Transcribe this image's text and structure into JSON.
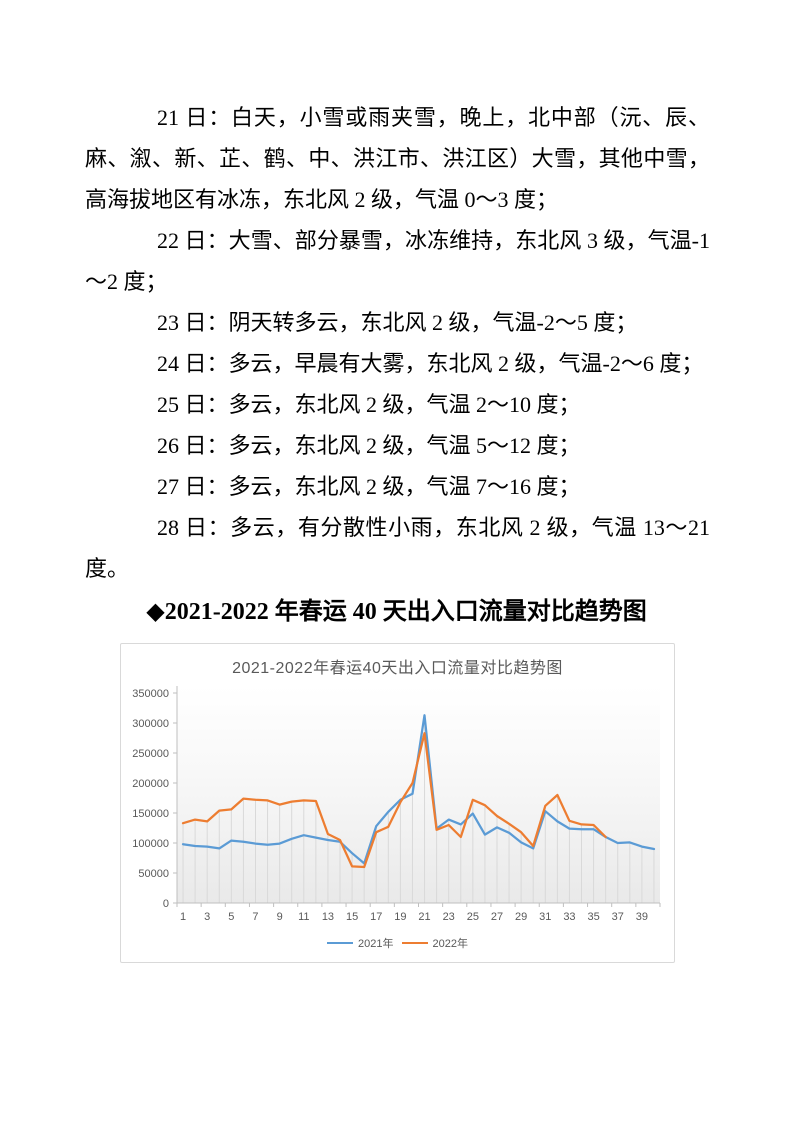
{
  "document": {
    "paragraphs": [
      "21 日：白天，小雪或雨夹雪，晚上，北中部（沅、辰、麻、溆、新、芷、鹤、中、洪江市、洪江区）大雪，其他中雪，高海拔地区有冰冻，东北风 2 级，气温 0～3 度；",
      "22 日：大雪、部分暴雪，冰冻维持，东北风 3 级，气温-1～2 度；",
      "23 日：阴天转多云，东北风 2 级，气温-2～5 度；",
      "24 日：多云，早晨有大雾，东北风 2 级，气温-2～6 度；",
      "25 日：多云，东北风 2 级，气温 2～10 度；",
      "26 日：多云，东北风 2 级，气温 5～12 度；",
      "27 日：多云，东北风 2 级，气温 7～16 度；",
      "28 日：多云，有分散性小雨，东北风 2 级，气温 13～21 度。"
    ],
    "heading": "◆2021-2022 年春运 40 天出入口流量对比趋势图"
  },
  "chart_data": {
    "type": "line",
    "title": "2021-2022年春运40天出入口流量对比趋势图",
    "x": [
      1,
      2,
      3,
      4,
      5,
      6,
      7,
      8,
      9,
      10,
      11,
      12,
      13,
      14,
      15,
      16,
      17,
      18,
      19,
      20,
      21,
      22,
      23,
      24,
      25,
      26,
      27,
      28,
      29,
      30,
      31,
      32,
      33,
      34,
      35,
      36,
      37,
      38,
      39,
      40
    ],
    "x_tick_labels": [
      "1",
      "3",
      "5",
      "7",
      "9",
      "11",
      "13",
      "15",
      "17",
      "19",
      "21",
      "23",
      "25",
      "27",
      "29",
      "31",
      "33",
      "35",
      "37",
      "39"
    ],
    "series": [
      {
        "name": "2021年",
        "color": "#5B9BD5",
        "values": [
          98000,
          95000,
          94000,
          91000,
          104000,
          102000,
          99000,
          97000,
          99000,
          107000,
          113000,
          109000,
          105000,
          102000,
          83000,
          66000,
          128000,
          152000,
          172000,
          182000,
          313000,
          124000,
          139000,
          131000,
          149000,
          114000,
          126000,
          117000,
          101000,
          91000,
          153000,
          136000,
          124000,
          123000,
          123000,
          110000,
          100000,
          101000,
          94000,
          90000
        ]
      },
      {
        "name": "2022年",
        "color": "#ED7D31",
        "values": [
          133000,
          139000,
          136000,
          154000,
          156000,
          174000,
          172000,
          171000,
          164000,
          169000,
          171000,
          170000,
          115000,
          105000,
          61000,
          60000,
          118000,
          127000,
          168000,
          200000,
          283000,
          122000,
          130000,
          110000,
          172000,
          163000,
          145000,
          132000,
          118000,
          95000,
          162000,
          180000,
          137000,
          131000,
          130000,
          110000
        ]
      }
    ],
    "ylim": [
      0,
      350000
    ],
    "ytick_interval": 50000,
    "yticks": [
      0,
      50000,
      100000,
      150000,
      200000,
      250000,
      300000,
      350000
    ],
    "legend_position": "bottom",
    "grid": "vertical-drop-lines",
    "colors": {
      "axis_text": "#595959",
      "axis_line": "#BFBFBF",
      "drop_line": "#D9D9D9",
      "frame_border": "#D9D9D9",
      "title_text": "#595959"
    }
  }
}
